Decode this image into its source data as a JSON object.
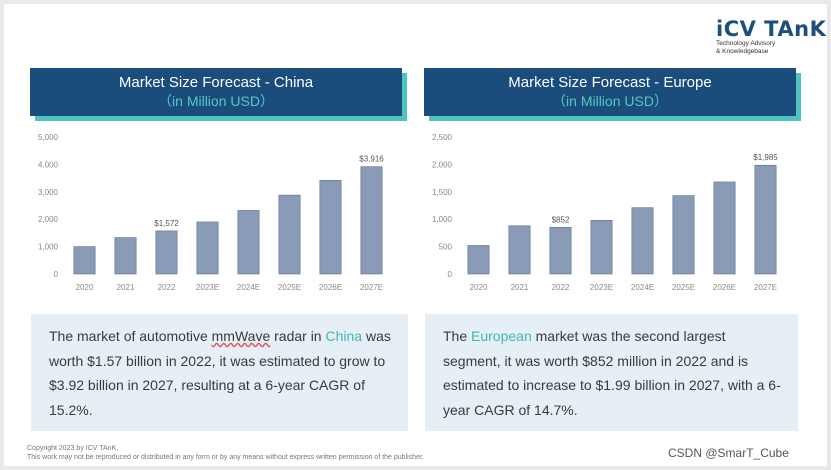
{
  "logo": {
    "name": "iCV TAnK",
    "tagline1": "Technology Advisory",
    "tagline2": "& Knowledgebase"
  },
  "colors": {
    "title_bg": "#1a4c7c",
    "title_shadow": "#4fc3c0",
    "bar": "#8a9bb8",
    "highlight": "#3fb8b2",
    "summary_bg": "#e6eff5"
  },
  "chart_data": [
    {
      "type": "bar",
      "title": "Market Size Forecast - China",
      "subtitle": "（in Million USD）",
      "categories": [
        "2020",
        "2021",
        "2022",
        "2023E",
        "2024E",
        "2025E",
        "2026E",
        "2027E"
      ],
      "values": [
        1000,
        1330,
        1572,
        1900,
        2320,
        2880,
        3420,
        3916
      ],
      "data_labels": [
        null,
        null,
        "$1,572",
        null,
        null,
        null,
        null,
        "$3,916"
      ],
      "ylim": [
        0,
        5000
      ],
      "yticks": [
        0,
        1000,
        2000,
        3000,
        4000,
        5000
      ],
      "ytick_labels": [
        "0",
        "1,000",
        "2,000",
        "3,000",
        "4,000",
        "5,000"
      ],
      "xlabel": "",
      "ylabel": "",
      "grid": false
    },
    {
      "type": "bar",
      "title": "Market Size Forecast - Europe",
      "subtitle": "（in Million USD）",
      "categories": [
        "2020",
        "2021",
        "2022",
        "2023E",
        "2024E",
        "2025E",
        "2026E",
        "2027E"
      ],
      "values": [
        520,
        880,
        852,
        980,
        1210,
        1430,
        1680,
        1985
      ],
      "data_labels": [
        null,
        null,
        "$852",
        null,
        null,
        null,
        null,
        "$1,985"
      ],
      "ylim": [
        0,
        2500
      ],
      "yticks": [
        0,
        500,
        1000,
        1500,
        2000,
        2500
      ],
      "ytick_labels": [
        "0",
        "500",
        "1,000",
        "1,500",
        "2,000",
        "2,500"
      ],
      "xlabel": "",
      "ylabel": "",
      "grid": false
    }
  ],
  "summary_china": {
    "p1": "The market of automotive ",
    "p2": "mmWave",
    "p3": " radar in ",
    "p4": "China",
    "p5": " was worth $1.57 billion in 2022, it was estimated to grow to $3.92 billion in 2027, resulting at a 6-year CAGR of 15.2%."
  },
  "summary_europe": {
    "p1": "The ",
    "p2": "European",
    "p3": " market was the second largest segment, it was worth $852 million in 2022 and is estimated to increase to $1.99 billion in 2027, with a 6-year CAGR of 14.7%."
  },
  "footer": {
    "line1": "Copyright  2023 by ICV TAnK.",
    "line2": "This work may not be reproduced or distributed in any form or by any means without express written permission of the publisher."
  },
  "watermark": "CSDN @SmarT_Cube"
}
